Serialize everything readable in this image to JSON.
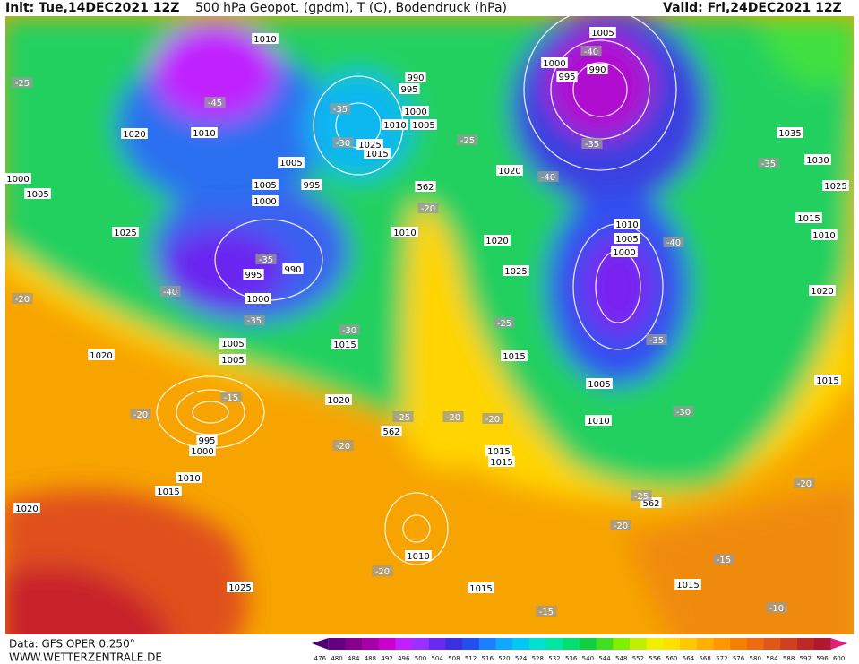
{
  "header": {
    "init": "Init: Tue,14DEC2021 12Z",
    "title": "500 hPa Geopot. (gpdm), T (C), Bodendruck (hPa)",
    "valid": "Valid: Fri,24DEC2021 12Z"
  },
  "footer": {
    "data": "Data: GFS OPER 0.250°",
    "site": "WWW.WETTERZENTRALE.DE"
  },
  "colorbar": {
    "labels": [
      476,
      480,
      484,
      488,
      492,
      496,
      500,
      504,
      508,
      512,
      516,
      520,
      524,
      528,
      532,
      536,
      540,
      544,
      548,
      552,
      556,
      560,
      564,
      568,
      572,
      576,
      580,
      584,
      588,
      592,
      596,
      600
    ],
    "colors": [
      "#4b0070",
      "#62007f",
      "#86008e",
      "#a800a8",
      "#cc00cc",
      "#c020ff",
      "#9a30ff",
      "#6a28f0",
      "#3a30e0",
      "#2250f0",
      "#1a80ff",
      "#10a8ff",
      "#00c8f0",
      "#00e0d0",
      "#00e8a0",
      "#00e070",
      "#10d040",
      "#40e020",
      "#80f000",
      "#c0f000",
      "#f0f000",
      "#ffe000",
      "#ffc800",
      "#ffb000",
      "#ff9800",
      "#f88000",
      "#f06a10",
      "#e05818",
      "#d04020",
      "#c02828",
      "#b01830",
      "#e0207a"
    ]
  },
  "map": {
    "labels": [
      "1010",
      "-25",
      "-45",
      "1010",
      "1020",
      "1005",
      "1005",
      "995",
      "1000",
      "1000",
      "1005",
      "1025",
      "-35",
      "995",
      "990",
      "-40",
      "1000",
      "-20",
      "-35",
      "1005",
      "1005",
      "1015",
      "-30",
      "1020",
      "1020",
      "-15",
      "-20",
      "995",
      "1000",
      "1010",
      "1015",
      "1020",
      "1025",
      "-20",
      "562",
      "-25",
      "-20",
      "-20",
      "1015",
      "1015",
      "1010",
      "-20",
      "1015",
      "-15",
      "-20",
      "562",
      "-25",
      "1015",
      "-15",
      "-20",
      "1015",
      "-10",
      "1010",
      "-30",
      "1005",
      "1015",
      "-25",
      "-35",
      "1025",
      "1020",
      "1020",
      "-40",
      "1010",
      "1005",
      "1000",
      "-40",
      "1000",
      "995",
      "990",
      "1005",
      "-40",
      "-35",
      "1035",
      "-35",
      "1030",
      "1025",
      "1015",
      "1010",
      "1020",
      "-25",
      "562",
      "-20",
      "1010",
      "990",
      "995",
      "1000",
      "1010",
      "1005",
      "1025",
      "1015",
      "-30",
      "-35"
    ]
  }
}
